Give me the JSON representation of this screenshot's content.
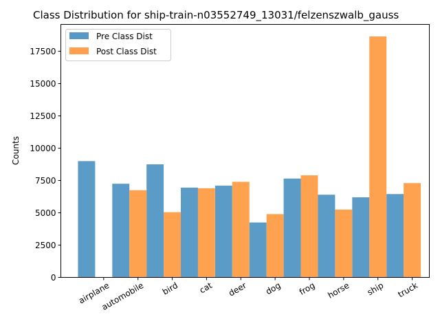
{
  "chart_data": {
    "type": "bar",
    "title": "Class Distribution for ship-train-n03552749_13031/felzenszwalb_gauss",
    "xlabel": "",
    "ylabel": "Counts",
    "categories": [
      "airplane",
      "automobile",
      "bird",
      "cat",
      "deer",
      "dog",
      "frog",
      "horse",
      "ship",
      "truck"
    ],
    "series": [
      {
        "name": "Pre Class Dist",
        "color": "#5799C6",
        "values": [
          9000,
          7250,
          8750,
          6950,
          7100,
          4250,
          7650,
          6400,
          6200,
          6450
        ]
      },
      {
        "name": "Post Class Dist",
        "color": "#FFA04D",
        "values": [
          0,
          6750,
          5050,
          6900,
          7400,
          4900,
          7900,
          5250,
          18650,
          7300
        ]
      }
    ],
    "ylim": [
      0,
      19580
    ],
    "yticks": [
      0,
      2500,
      5000,
      7500,
      10000,
      12500,
      15000,
      17500
    ],
    "legend_position": "top-left",
    "grid": false
  }
}
